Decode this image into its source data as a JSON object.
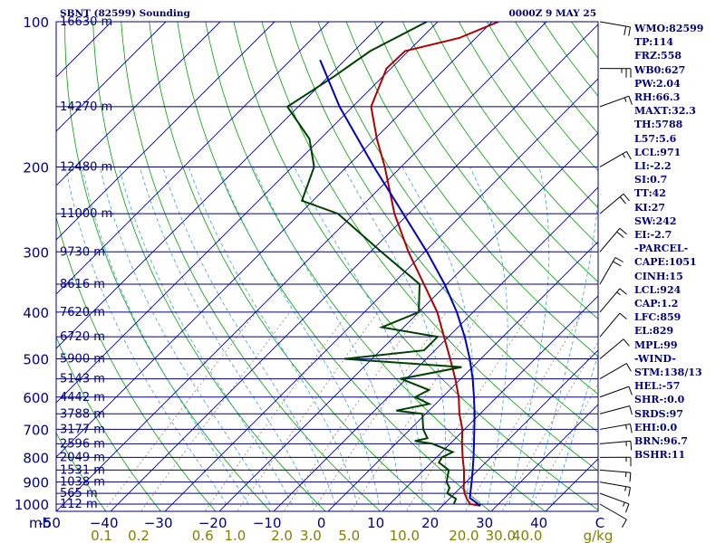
{
  "header": {
    "title": "SBNT (82599) Sounding",
    "time": "0000Z  9 MAY 25"
  },
  "chart_data": {
    "type": "line",
    "xlabel": "°C",
    "ylabel": "mb",
    "pressure_ticks": [
      100,
      200,
      300,
      400,
      500,
      600,
      700,
      800,
      900,
      1000
    ],
    "pressure_label": "mb",
    "temp_ticks": [
      -50,
      -40,
      -30,
      -20,
      -10,
      0,
      10,
      20,
      30,
      40
    ],
    "temp_tick_labels": [
      "-50",
      "−40",
      "−30",
      "−20",
      "−10",
      "0",
      "10",
      "20",
      "30",
      "40"
    ],
    "temp_unit_label": "C",
    "mixing_ratio_labels": [
      "0.1",
      "0.2",
      "0.6",
      "1.0",
      "2.0",
      "3.0",
      "5.0",
      "10.0",
      "20.0",
      "30.0",
      "40.0"
    ],
    "mixing_ratio_unit": "g/kg",
    "height_levels": [
      {
        "p": 100,
        "label": "16630 m"
      },
      {
        "p": 150,
        "label": "14270 m"
      },
      {
        "p": 200,
        "label": "12480 m"
      },
      {
        "p": 250,
        "label": "11000 m"
      },
      {
        "p": 300,
        "label": "9730 m"
      },
      {
        "p": 350,
        "label": "8616 m"
      },
      {
        "p": 400,
        "label": "7620 m"
      },
      {
        "p": 450,
        "label": "6720 m"
      },
      {
        "p": 500,
        "label": "5900 m"
      },
      {
        "p": 550,
        "label": "5143 m"
      },
      {
        "p": 600,
        "label": "4442 m"
      },
      {
        "p": 650,
        "label": "3788 m"
      },
      {
        "p": 700,
        "label": "3177 m"
      },
      {
        "p": 750,
        "label": "2596 m"
      },
      {
        "p": 800,
        "label": "2049 m"
      },
      {
        "p": 850,
        "label": "1531 m"
      },
      {
        "p": 900,
        "label": "1038 m"
      },
      {
        "p": 950,
        "label": "565 m"
      },
      {
        "p": 1000,
        "label": "112 m"
      }
    ],
    "series": [
      {
        "role": "temperature",
        "color": "#b00000",
        "points": [
          {
            "p": 1008,
            "t": 27.0
          },
          {
            "p": 1000,
            "t": 24.8
          },
          {
            "p": 975,
            "t": 23.2
          },
          {
            "p": 950,
            "t": 21.8
          },
          {
            "p": 925,
            "t": 20.6
          },
          {
            "p": 900,
            "t": 19.6
          },
          {
            "p": 850,
            "t": 17.4
          },
          {
            "p": 800,
            "t": 14.8
          },
          {
            "p": 750,
            "t": 12.2
          },
          {
            "p": 700,
            "t": 9.6
          },
          {
            "p": 650,
            "t": 6.2
          },
          {
            "p": 600,
            "t": 3.0
          },
          {
            "p": 550,
            "t": -1.0
          },
          {
            "p": 500,
            "t": -5.6
          },
          {
            "p": 450,
            "t": -10.8
          },
          {
            "p": 400,
            "t": -16.6
          },
          {
            "p": 350,
            "t": -24.2
          },
          {
            "p": 300,
            "t": -33.0
          },
          {
            "p": 250,
            "t": -42.6
          },
          {
            "p": 200,
            "t": -53.0
          },
          {
            "p": 175,
            "t": -59.6
          },
          {
            "p": 150,
            "t": -66.6
          },
          {
            "p": 125,
            "t": -70.8
          },
          {
            "p": 115,
            "t": -70.6
          },
          {
            "p": 108,
            "t": -63.0
          },
          {
            "p": 100,
            "t": -58.8
          }
        ]
      },
      {
        "role": "dewpoint",
        "color": "#004000",
        "points": [
          {
            "p": 1000,
            "t": 21.8
          },
          {
            "p": 975,
            "t": 21.2
          },
          {
            "p": 950,
            "t": 18.6
          },
          {
            "p": 925,
            "t": 18.0
          },
          {
            "p": 900,
            "t": 16.4
          },
          {
            "p": 850,
            "t": 14.6
          },
          {
            "p": 820,
            "t": 11.4
          },
          {
            "p": 800,
            "t": 11.0
          },
          {
            "p": 780,
            "t": 12.0
          },
          {
            "p": 750,
            "t": 6.8
          },
          {
            "p": 740,
            "t": 3.0
          },
          {
            "p": 730,
            "t": 4.8
          },
          {
            "p": 700,
            "t": 2.4
          },
          {
            "p": 650,
            "t": -0.6
          },
          {
            "p": 640,
            "t": -6.0
          },
          {
            "p": 620,
            "t": -1.2
          },
          {
            "p": 600,
            "t": -5.0
          },
          {
            "p": 580,
            "t": -3.8
          },
          {
            "p": 550,
            "t": -11.0
          },
          {
            "p": 520,
            "t": -2.0
          },
          {
            "p": 500,
            "t": -25.0
          },
          {
            "p": 480,
            "t": -12.0
          },
          {
            "p": 450,
            "t": -12.0
          },
          {
            "p": 430,
            "t": -24.0
          },
          {
            "p": 400,
            "t": -20.0
          },
          {
            "p": 350,
            "t": -25.0
          },
          {
            "p": 300,
            "t": -38.0
          },
          {
            "p": 250,
            "t": -53.0
          },
          {
            "p": 235,
            "t": -62.0
          },
          {
            "p": 200,
            "t": -66.0
          },
          {
            "p": 175,
            "t": -72.0
          },
          {
            "p": 150,
            "t": -82.0
          },
          {
            "p": 130,
            "t": -79.0
          },
          {
            "p": 115,
            "t": -77.0
          },
          {
            "p": 100,
            "t": -72.0
          }
        ]
      },
      {
        "role": "parcel",
        "color": "#0000c0",
        "points": [
          {
            "p": 1008,
            "t": 27.0
          },
          {
            "p": 971,
            "t": 23.6
          },
          {
            "p": 900,
            "t": 21.0
          },
          {
            "p": 850,
            "t": 19.0
          },
          {
            "p": 800,
            "t": 16.8
          },
          {
            "p": 750,
            "t": 14.4
          },
          {
            "p": 700,
            "t": 11.8
          },
          {
            "p": 650,
            "t": 9.0
          },
          {
            "p": 600,
            "t": 5.8
          },
          {
            "p": 550,
            "t": 2.2
          },
          {
            "p": 500,
            "t": -2.0
          },
          {
            "p": 450,
            "t": -7.0
          },
          {
            "p": 400,
            "t": -13.0
          },
          {
            "p": 350,
            "t": -20.4
          },
          {
            "p": 300,
            "t": -29.6
          },
          {
            "p": 250,
            "t": -41.0
          },
          {
            "p": 200,
            "t": -55.0
          },
          {
            "p": 150,
            "t": -72.4
          },
          {
            "p": 120,
            "t": -84.6
          }
        ]
      }
    ],
    "winds": [
      {
        "p": 1000,
        "dir": 120,
        "spd": 10
      },
      {
        "p": 950,
        "dir": 110,
        "spd": 15
      },
      {
        "p": 900,
        "dir": 100,
        "spd": 15
      },
      {
        "p": 850,
        "dir": 95,
        "spd": 15
      },
      {
        "p": 800,
        "dir": 90,
        "spd": 15
      },
      {
        "p": 750,
        "dir": 85,
        "spd": 15
      },
      {
        "p": 700,
        "dir": 80,
        "spd": 15
      },
      {
        "p": 650,
        "dir": 75,
        "spd": 10
      },
      {
        "p": 600,
        "dir": 70,
        "spd": 10
      },
      {
        "p": 550,
        "dir": 60,
        "spd": 10
      },
      {
        "p": 500,
        "dir": 50,
        "spd": 10
      },
      {
        "p": 450,
        "dir": 40,
        "spd": 10
      },
      {
        "p": 400,
        "dir": 40,
        "spd": 15
      },
      {
        "p": 350,
        "dir": 30,
        "spd": 20
      },
      {
        "p": 300,
        "dir": 40,
        "spd": 20
      },
      {
        "p": 250,
        "dir": 50,
        "spd": 20
      },
      {
        "p": 200,
        "dir": 60,
        "spd": 15
      },
      {
        "p": 150,
        "dir": 70,
        "spd": 15
      },
      {
        "p": 125,
        "dir": 90,
        "spd": 25
      },
      {
        "p": 100,
        "dir": 100,
        "spd": 20
      }
    ],
    "indices": [
      "WMO:82599",
      "TP:114",
      "FRZ:558",
      "WB0:627",
      "PW:2.04",
      "RH:66.3",
      "MAXT:32.3",
      "TH:5788",
      "L57:5.6",
      "LCL:971",
      "LI:-2.2",
      "SI:0.7",
      "TT:42",
      "KI:27",
      "SW:242",
      "EI:-2.7",
      "-PARCEL-",
      "CAPE:1051",
      "CINH:15",
      "LCL:924",
      "CAP:1.2",
      "LFC:859",
      "EL:829",
      "MPL:99",
      "-WIND-",
      "STM:138/13",
      "HEL:-57",
      "SHR-:0.0",
      "SRDS:97",
      "EHI:0.0",
      "BRN:96.7",
      "BSHR:11"
    ],
    "colors": {
      "isobars": "#000080",
      "isotherms": "#000080",
      "dry_adiabats": "#00a000",
      "moist_adiabats": "#3da0d8",
      "mixing_ratio": "#a08060",
      "text": "#000080",
      "axis_labels": "#808000",
      "wind_barbs": "#000000"
    }
  }
}
